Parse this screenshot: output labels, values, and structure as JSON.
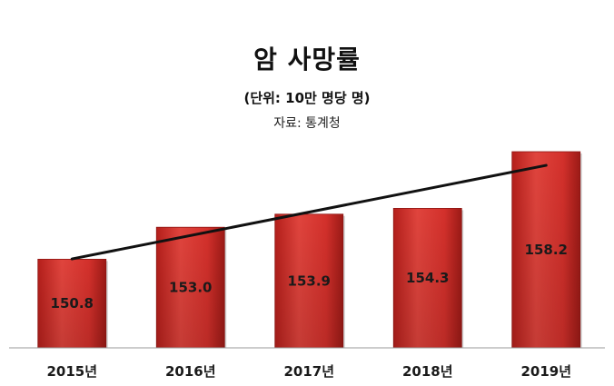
{
  "chart_data": {
    "type": "bar",
    "title": "암 사망률",
    "unit_label": "(단위: 10만 명당 명)",
    "source_label": "자료: 통계청",
    "categories": [
      "2015년",
      "2016년",
      "2017년",
      "2018년",
      "2019년"
    ],
    "values": [
      150.8,
      153.0,
      153.9,
      154.3,
      158.2
    ],
    "value_labels": [
      "150.8",
      "153.0",
      "153.9",
      "154.3",
      "158.2"
    ],
    "ylim": [
      144.7,
      158.2
    ],
    "trendline": true,
    "grid": false,
    "colors": {
      "bar": "#d9312c",
      "bar_dark": "#8e1613",
      "trendline": "#111111",
      "axis": "#999999"
    }
  }
}
